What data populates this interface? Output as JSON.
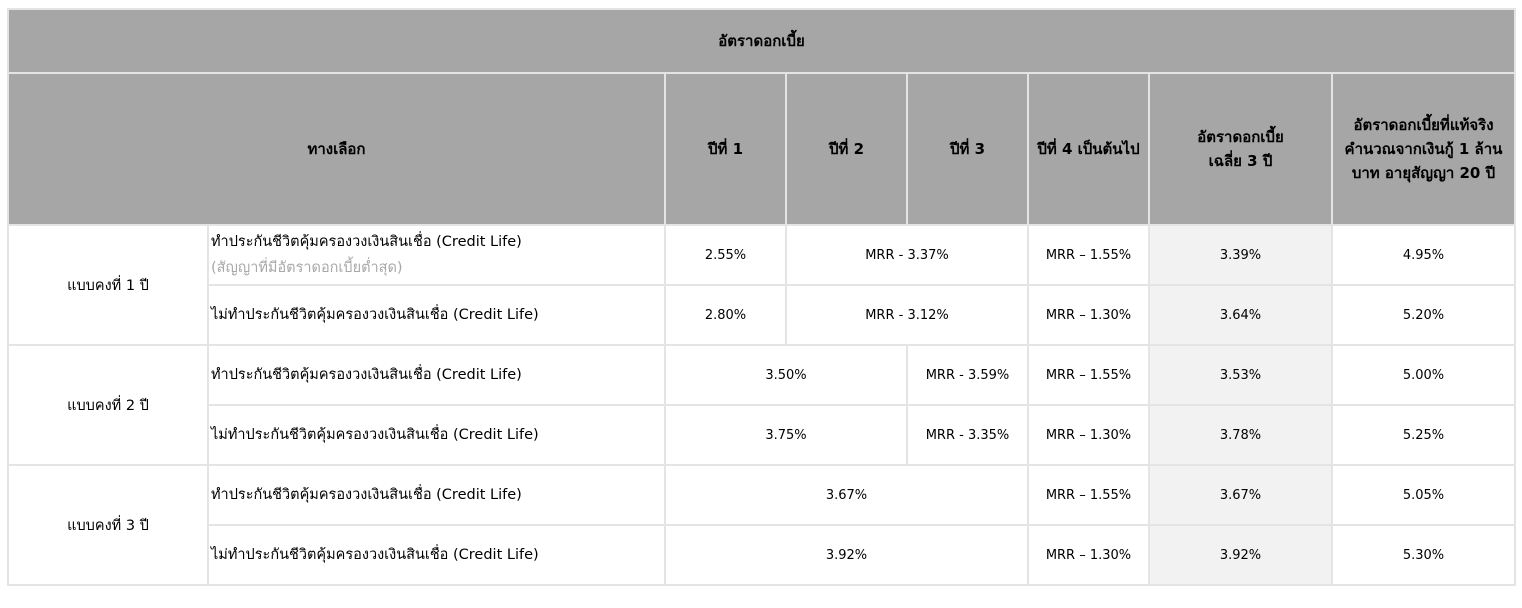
{
  "header": {
    "title": "อัตราดอกเบี้ย",
    "col_option": "ทางเลือก",
    "col_year1": "ปีที่ 1",
    "col_year2": "ปีที่ 2",
    "col_year3": "ปีที่ 3",
    "col_year4": "ปีที่ 4 เป็นต้นไป",
    "col_avg_line1": "อัตราดอกเบี้ย",
    "col_avg_line2": "เฉลี่ย 3 ปี",
    "col_eff_line1": "อัตราดอกเบี้ยที่แท้จริง",
    "col_eff_line2": "คำนวณจากเงินกู้ 1 ล้าน",
    "col_eff_line3": "บาท อายุสัญญา 20 ปี"
  },
  "plans": [
    {
      "name": "แบบคงที่ 1 ปี",
      "rows": [
        {
          "option": "ทำประกันชีวิตคุ้มครองวงเงินสินเชื่อ (Credit Life)",
          "note": "(สัญญาที่มีอัตราดอกเบี้ยต่ำสุด)",
          "year1": "2.55%",
          "year2_3": "MRR - 3.37%",
          "year4": "MRR – 1.55%",
          "avg3": "3.39%",
          "effective": "4.95%"
        },
        {
          "option": "ไม่ทำประกันชีวิตคุ้มครองวงเงินสินเชื่อ (Credit Life)",
          "year1": "2.80%",
          "year2_3": "MRR - 3.12%",
          "year4": "MRR – 1.30%",
          "avg3": "3.64%",
          "effective": "5.20%"
        }
      ]
    },
    {
      "name": "แบบคงที่ 2 ปี",
      "rows": [
        {
          "option": "ทำประกันชีวิตคุ้มครองวงเงินสินเชื่อ (Credit Life)",
          "year1_2": "3.50%",
          "year3": "MRR - 3.59%",
          "year4": "MRR – 1.55%",
          "avg3": "3.53%",
          "effective": "5.00%"
        },
        {
          "option": "ไม่ทำประกันชีวิตคุ้มครองวงเงินสินเชื่อ (Credit Life)",
          "year1_2": "3.75%",
          "year3": "MRR - 3.35%",
          "year4": "MRR – 1.30%",
          "avg3": "3.78%",
          "effective": "5.25%"
        }
      ]
    },
    {
      "name": "แบบคงที่ 3 ปี",
      "rows": [
        {
          "option": "ทำประกันชีวิตคุ้มครองวงเงินสินเชื่อ (Credit Life)",
          "year1_3": "3.67%",
          "year4": "MRR – 1.55%",
          "avg3": "3.67%",
          "effective": "5.05%"
        },
        {
          "option": "ไม่ทำประกันชีวิตคุ้มครองวงเงินสินเชื่อ (Credit Life)",
          "year1_3": "3.92%",
          "year4": "MRR – 1.30%",
          "avg3": "3.92%",
          "effective": "5.30%"
        }
      ]
    }
  ]
}
